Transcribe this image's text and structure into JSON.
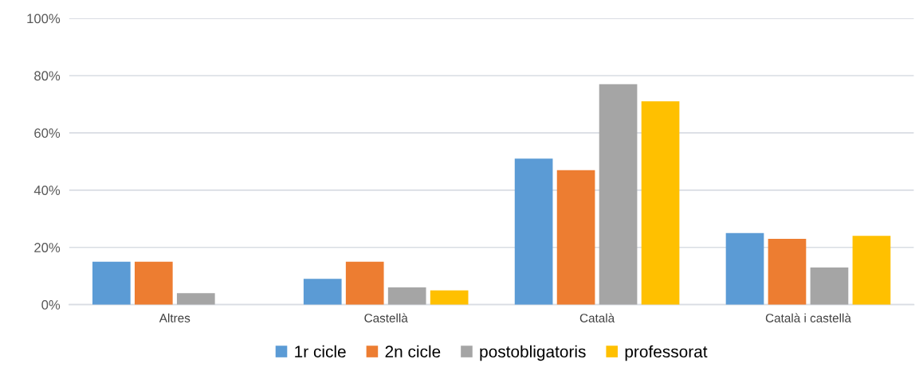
{
  "chart_data": {
    "type": "bar",
    "categories": [
      "Altres",
      "Castellà",
      "Català",
      "Català i castellà"
    ],
    "series": [
      {
        "name": "1r cicle",
        "color": "#5b9bd5",
        "values": [
          15,
          9,
          51,
          25
        ]
      },
      {
        "name": "2n cicle",
        "color": "#ed7d31",
        "values": [
          15,
          15,
          47,
          23
        ]
      },
      {
        "name": "postobligatoris",
        "color": "#a5a5a5",
        "values": [
          4,
          6,
          77,
          13
        ]
      },
      {
        "name": "professorat",
        "color": "#ffc000",
        "values": [
          0,
          5,
          71,
          24
        ]
      }
    ],
    "ylim": [
      0,
      100
    ],
    "yticks": [
      {
        "value": 0,
        "label": "0%"
      },
      {
        "value": 20,
        "label": "20%"
      },
      {
        "value": 40,
        "label": "40%"
      },
      {
        "value": 60,
        "label": "60%"
      },
      {
        "value": 80,
        "label": "80%"
      },
      {
        "value": 100,
        "label": "100%"
      }
    ],
    "grid": "y",
    "legend": "bottom"
  }
}
